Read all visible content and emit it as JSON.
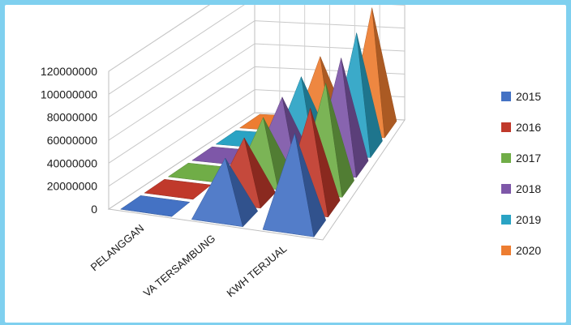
{
  "chart_data": {
    "type": "bar",
    "subtype": "3d-pyramid",
    "title": "",
    "xlabel": "",
    "ylabel": "",
    "ylim": [
      0,
      120000000
    ],
    "y_ticks": [
      "0",
      "20000000",
      "40000000",
      "60000000",
      "80000000",
      "100000000",
      "120000000"
    ],
    "grid": true,
    "legend_position": "right",
    "categories": [
      "PELANGGAN",
      "VA TERSAMBUNG",
      "KWH TERJUAL"
    ],
    "series": [
      {
        "name": "2015",
        "color": "#4472c4",
        "values": [
          300000,
          50000000,
          80000000
        ]
      },
      {
        "name": "2016",
        "color": "#c0392b",
        "values": [
          320000,
          52000000,
          85000000
        ]
      },
      {
        "name": "2017",
        "color": "#70ad47",
        "values": [
          340000,
          54000000,
          90000000
        ]
      },
      {
        "name": "2018",
        "color": "#7e57a8",
        "values": [
          360000,
          56000000,
          95000000
        ]
      },
      {
        "name": "2019",
        "color": "#2aa3c4",
        "values": [
          380000,
          58000000,
          100000000
        ]
      },
      {
        "name": "2020",
        "color": "#ed7d31",
        "values": [
          400000,
          60000000,
          105000000
        ]
      }
    ]
  }
}
